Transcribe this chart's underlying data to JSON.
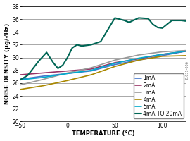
{
  "title": "",
  "xlabel": "TEMPERATURE (°C)",
  "ylabel": "NOISE DENSITY (μg/√Hz)",
  "xlim": [
    -50,
    125
  ],
  "ylim": [
    20,
    38
  ],
  "xticks": [
    -50,
    0,
    50,
    100
  ],
  "yticks": [
    20,
    22,
    24,
    26,
    28,
    30,
    32,
    34,
    36,
    38
  ],
  "series": {
    "1mA": {
      "color": "#4477CC",
      "x": [
        -50,
        -25,
        0,
        25,
        50,
        75,
        100,
        125
      ],
      "y": [
        26.6,
        27.1,
        27.5,
        27.9,
        28.9,
        29.6,
        30.3,
        31.0
      ]
    },
    "2mA": {
      "color": "#993366",
      "x": [
        -50,
        -25,
        0,
        25,
        50,
        75,
        100,
        125
      ],
      "y": [
        27.3,
        27.6,
        27.9,
        28.2,
        29.2,
        29.8,
        30.5,
        31.0
      ]
    },
    "3mA": {
      "color": "#999999",
      "x": [
        -50,
        -25,
        0,
        25,
        50,
        75,
        100,
        125
      ],
      "y": [
        25.7,
        26.6,
        27.6,
        28.4,
        29.6,
        30.4,
        30.9,
        31.1
      ]
    },
    "4mA": {
      "color": "#AA8800",
      "x": [
        -50,
        -25,
        0,
        25,
        50,
        75,
        100,
        125
      ],
      "y": [
        25.0,
        25.6,
        26.4,
        27.3,
        28.6,
        29.6,
        30.2,
        30.3
      ]
    },
    "5mA": {
      "color": "#00AACC",
      "x": [
        -50,
        -25,
        0,
        25,
        50,
        75,
        100,
        125
      ],
      "y": [
        26.5,
        26.9,
        27.5,
        28.0,
        29.1,
        29.9,
        30.5,
        31.0
      ]
    },
    "4mA TO 20mA": {
      "color": "#006655",
      "x": [
        -50,
        -42,
        -30,
        -22,
        -15,
        -10,
        -5,
        0,
        5,
        10,
        15,
        25,
        35,
        50,
        55,
        60,
        65,
        75,
        85,
        90,
        95,
        100,
        110,
        120,
        125
      ],
      "y": [
        26.5,
        27.2,
        29.5,
        30.8,
        29.2,
        28.3,
        28.8,
        30.0,
        31.5,
        32.0,
        31.8,
        32.0,
        32.5,
        36.2,
        36.0,
        35.8,
        35.5,
        36.2,
        36.1,
        35.2,
        34.7,
        34.6,
        35.8,
        35.8,
        35.7
      ]
    }
  },
  "legend_order": [
    "1mA",
    "2mA",
    "3mA",
    "4mA",
    "5mA",
    "4mA TO 20mA"
  ],
  "bg_color": "#ffffff",
  "label_fontsize": 6.0,
  "tick_fontsize": 5.5,
  "legend_fontsize": 5.5,
  "side_label": "21031-006"
}
